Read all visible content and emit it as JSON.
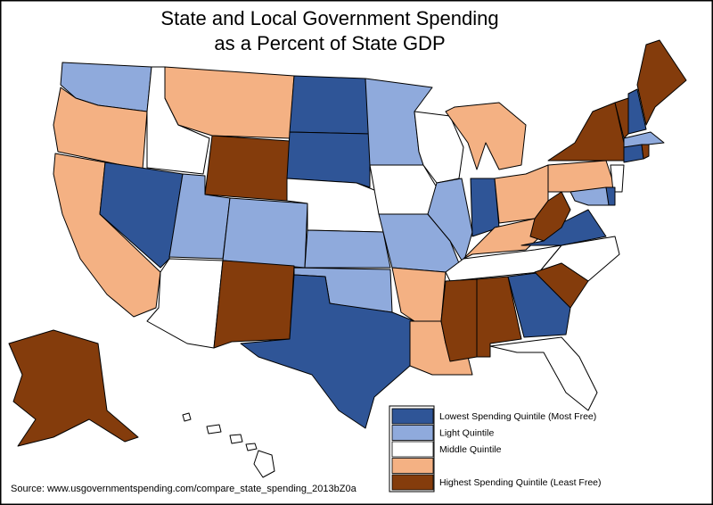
{
  "header": {
    "title_lines": [
      "State and Local Government Spending",
      "as a Percent of State GDP"
    ]
  },
  "legend": [
    {
      "label": "Lowest Spending Quintile (Most Free)",
      "color": "#2f5597"
    },
    {
      "label": "Light Quintile",
      "color": "#8faadc"
    },
    {
      "label": "Middle Quintile",
      "color": "#ffffff"
    },
    {
      "label": "",
      "color": "#f4b183"
    },
    {
      "label": "Highest Spending Quintile (Least Free)",
      "color": "#843c0c"
    }
  ],
  "source": "Source: www.usgovernmentspending.com/compare_state_spending_2013bZ0a"
}
